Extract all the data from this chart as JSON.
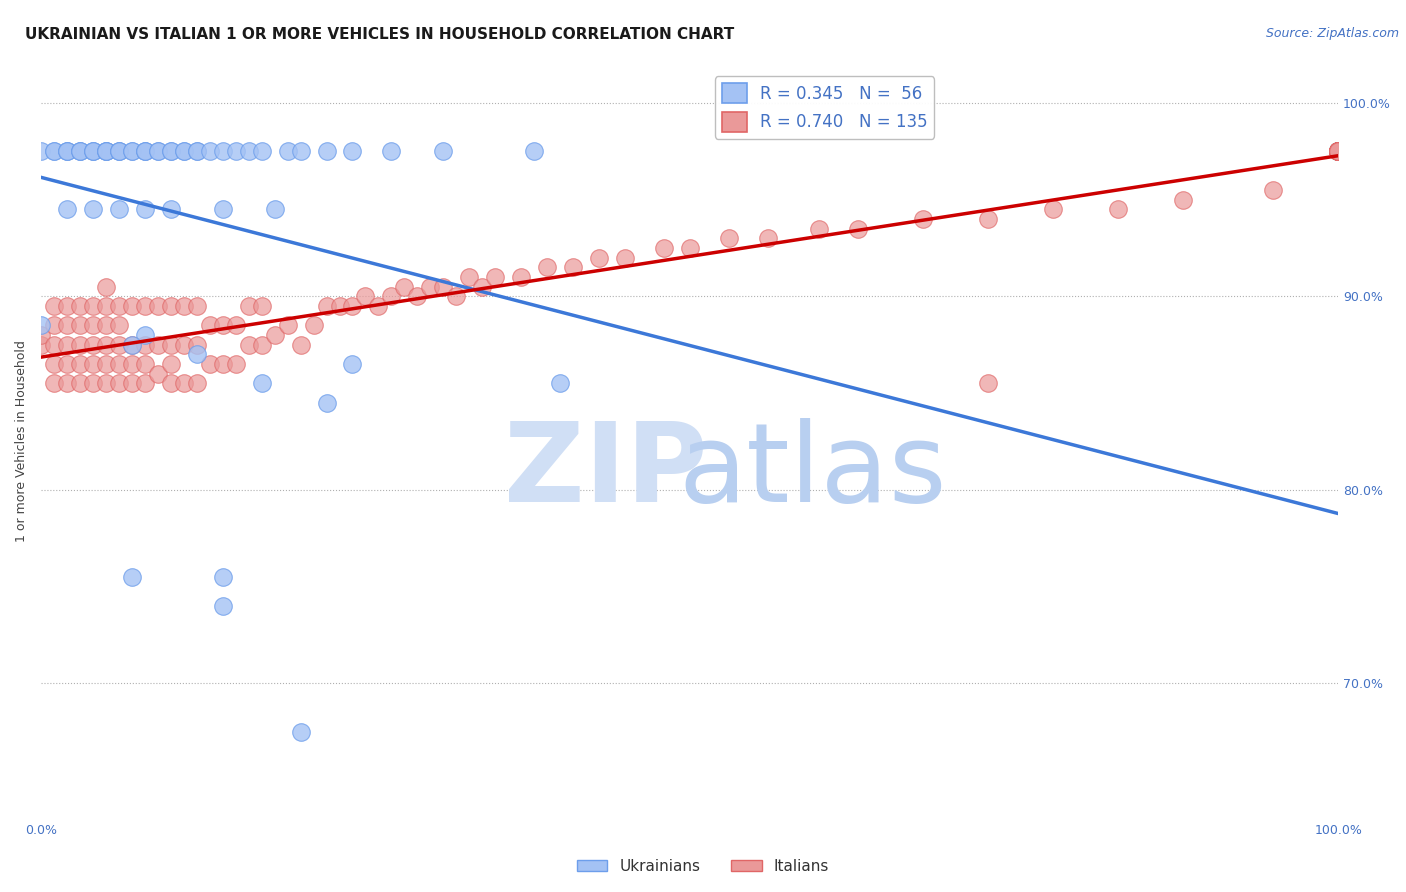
{
  "title": "UKRAINIAN VS ITALIAN 1 OR MORE VEHICLES IN HOUSEHOLD CORRELATION CHART",
  "source": "Source: ZipAtlas.com",
  "ylabel": "1 or more Vehicles in Household",
  "xlim": [
    0,
    1
  ],
  "ylim": [
    0.63,
    1.02
  ],
  "ytick_vals": [
    0.7,
    0.8,
    0.9,
    1.0
  ],
  "ytick_labels": [
    "70.0%",
    "80.0%",
    "90.0%",
    "100.0%"
  ],
  "xticks": [
    0.0,
    0.1,
    0.2,
    0.3,
    0.4,
    0.5,
    0.6,
    0.7,
    0.8,
    0.9,
    1.0
  ],
  "legend_blue_label": "R = 0.345   N =  56",
  "legend_pink_label": "R = 0.740   N = 135",
  "legend_blue_marker": "Ukrainians",
  "legend_pink_marker": "Italians",
  "blue_color": "#a4c2f4",
  "pink_color": "#ea9999",
  "blue_edge_color": "#6d9eeb",
  "pink_edge_color": "#e06666",
  "blue_line_color": "#3c78d8",
  "pink_line_color": "#cc0000",
  "background_color": "#ffffff",
  "watermark_zip_color": "#d0dff5",
  "watermark_atlas_color": "#b8cff0",
  "title_fontsize": 11,
  "source_fontsize": 9,
  "axis_label_fontsize": 9,
  "tick_fontsize": 9,
  "legend_fontsize": 12,
  "blue_scatter_x": [
    0.0,
    0.01,
    0.01,
    0.02,
    0.02,
    0.02,
    0.03,
    0.03,
    0.03,
    0.04,
    0.04,
    0.04,
    0.05,
    0.05,
    0.05,
    0.05,
    0.06,
    0.06,
    0.06,
    0.07,
    0.07,
    0.08,
    0.08,
    0.08,
    0.09,
    0.09,
    0.1,
    0.1,
    0.11,
    0.11,
    0.12,
    0.12,
    0.13,
    0.14,
    0.15,
    0.16,
    0.17,
    0.19,
    0.2,
    0.22,
    0.24,
    0.27,
    0.31,
    0.38,
    0.02,
    0.04,
    0.06,
    0.08,
    0.1,
    0.14,
    0.18,
    0.08,
    0.12,
    0.17,
    0.22,
    0.4
  ],
  "blue_scatter_y": [
    0.975,
    0.975,
    0.975,
    0.975,
    0.975,
    0.975,
    0.975,
    0.975,
    0.975,
    0.975,
    0.975,
    0.975,
    0.975,
    0.975,
    0.975,
    0.975,
    0.975,
    0.975,
    0.975,
    0.975,
    0.975,
    0.975,
    0.975,
    0.975,
    0.975,
    0.975,
    0.975,
    0.975,
    0.975,
    0.975,
    0.975,
    0.975,
    0.975,
    0.975,
    0.975,
    0.975,
    0.975,
    0.975,
    0.975,
    0.975,
    0.975,
    0.975,
    0.975,
    0.975,
    0.945,
    0.945,
    0.945,
    0.945,
    0.945,
    0.945,
    0.945,
    0.88,
    0.87,
    0.855,
    0.845,
    0.855
  ],
  "pink_scatter_x": [
    0.0,
    0.0,
    0.01,
    0.01,
    0.01,
    0.01,
    0.01,
    0.02,
    0.02,
    0.02,
    0.02,
    0.02,
    0.03,
    0.03,
    0.03,
    0.03,
    0.03,
    0.04,
    0.04,
    0.04,
    0.04,
    0.04,
    0.05,
    0.05,
    0.05,
    0.05,
    0.05,
    0.05,
    0.06,
    0.06,
    0.06,
    0.06,
    0.06,
    0.07,
    0.07,
    0.07,
    0.07,
    0.08,
    0.08,
    0.08,
    0.08,
    0.09,
    0.09,
    0.09,
    0.1,
    0.1,
    0.1,
    0.1,
    0.11,
    0.11,
    0.11,
    0.12,
    0.12,
    0.12,
    0.13,
    0.13,
    0.14,
    0.14,
    0.15,
    0.15,
    0.16,
    0.16,
    0.17,
    0.17,
    0.18,
    0.19,
    0.2,
    0.21,
    0.22,
    0.23,
    0.24,
    0.25,
    0.26,
    0.27,
    0.28,
    0.29,
    0.3,
    0.31,
    0.32,
    0.33,
    0.34,
    0.35,
    0.37,
    0.39,
    0.41,
    0.43,
    0.45,
    0.48,
    0.5,
    0.53,
    0.56,
    0.6,
    0.63,
    0.68,
    0.73,
    0.78,
    0.83,
    0.88,
    0.95,
    1.0,
    1.0,
    1.0,
    1.0,
    1.0,
    1.0,
    1.0,
    1.0,
    1.0,
    1.0,
    1.0,
    1.0,
    1.0,
    1.0,
    1.0,
    1.0,
    1.0,
    1.0,
    1.0,
    1.0,
    1.0,
    1.0,
    1.0,
    1.0,
    1.0,
    1.0,
    1.0,
    1.0,
    1.0,
    1.0,
    1.0,
    1.0,
    1.0,
    1.0,
    1.0,
    1.0
  ],
  "pink_scatter_y": [
    0.875,
    0.88,
    0.855,
    0.865,
    0.875,
    0.885,
    0.895,
    0.855,
    0.865,
    0.875,
    0.885,
    0.895,
    0.855,
    0.865,
    0.875,
    0.885,
    0.895,
    0.855,
    0.865,
    0.875,
    0.885,
    0.895,
    0.855,
    0.865,
    0.875,
    0.885,
    0.895,
    0.905,
    0.855,
    0.865,
    0.875,
    0.885,
    0.895,
    0.855,
    0.865,
    0.875,
    0.895,
    0.855,
    0.865,
    0.875,
    0.895,
    0.86,
    0.875,
    0.895,
    0.855,
    0.865,
    0.875,
    0.895,
    0.855,
    0.875,
    0.895,
    0.855,
    0.875,
    0.895,
    0.865,
    0.885,
    0.865,
    0.885,
    0.865,
    0.885,
    0.875,
    0.895,
    0.875,
    0.895,
    0.88,
    0.885,
    0.875,
    0.885,
    0.895,
    0.895,
    0.895,
    0.9,
    0.895,
    0.9,
    0.905,
    0.9,
    0.905,
    0.905,
    0.9,
    0.91,
    0.905,
    0.91,
    0.91,
    0.915,
    0.915,
    0.92,
    0.92,
    0.925,
    0.925,
    0.93,
    0.93,
    0.935,
    0.935,
    0.94,
    0.94,
    0.945,
    0.945,
    0.95,
    0.955,
    0.975,
    0.975,
    0.975,
    0.975,
    0.975,
    0.975,
    0.975,
    0.975,
    0.975,
    0.975,
    0.975,
    0.975,
    0.975,
    0.975,
    0.975,
    0.975,
    0.975,
    0.975,
    0.975,
    0.975,
    0.975,
    0.975,
    0.975,
    0.975,
    0.975,
    0.975,
    0.975,
    0.975,
    0.975,
    0.975,
    0.975,
    0.975,
    0.975,
    0.975,
    0.975,
    0.975
  ],
  "pink_outlier_x": [
    0.73
  ],
  "pink_outlier_y": [
    0.855
  ],
  "blue_low_x": [
    0.0,
    0.07,
    0.24,
    0.07,
    0.14,
    0.14,
    0.2
  ],
  "blue_low_y": [
    0.885,
    0.875,
    0.865,
    0.755,
    0.755,
    0.74,
    0.675
  ]
}
